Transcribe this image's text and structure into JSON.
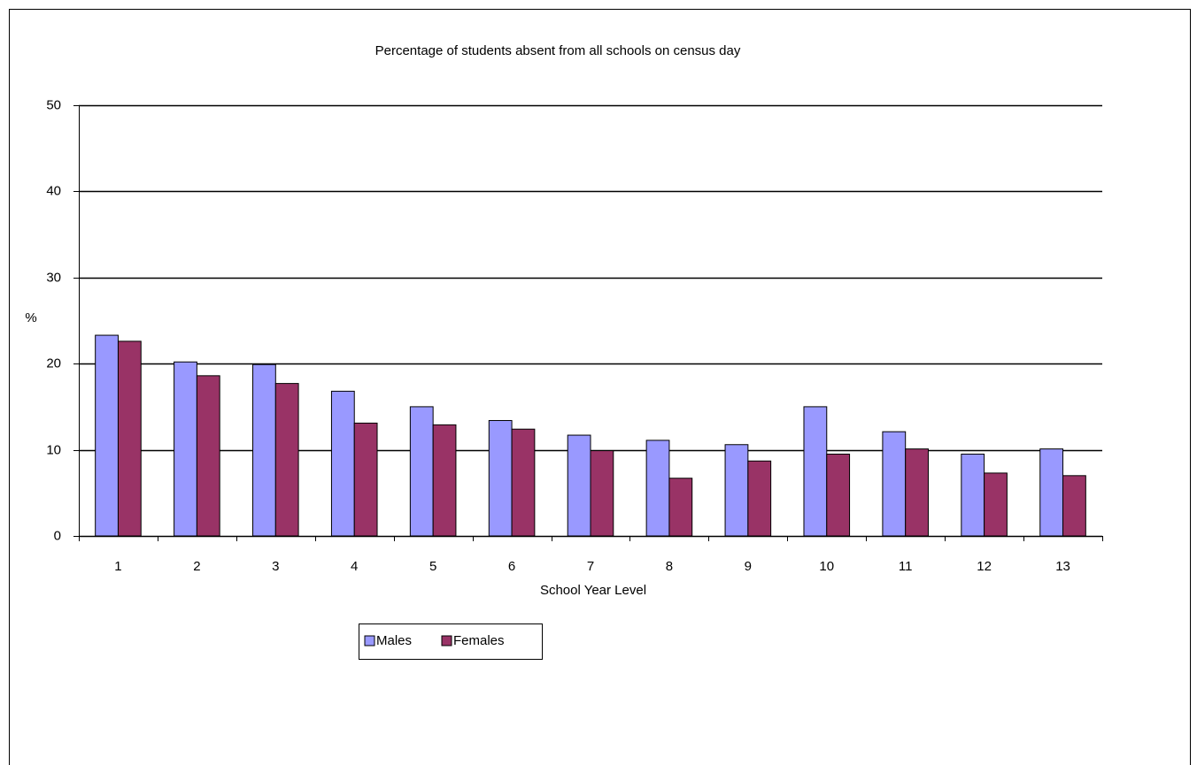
{
  "chart_data": {
    "type": "bar",
    "title": "Percentage of students absent from all schools on census day",
    "x_label": "School Year Level",
    "y_label": "%",
    "categories": [
      "1",
      "2",
      "3",
      "4",
      "5",
      "6",
      "7",
      "8",
      "9",
      "10",
      "11",
      "12",
      "13"
    ],
    "series": [
      {
        "name": "Males",
        "color": "#9999ff",
        "values": [
          23.3,
          20.2,
          19.9,
          16.8,
          15.0,
          13.4,
          11.7,
          11.1,
          10.6,
          15.0,
          12.1,
          9.5,
          10.1
        ]
      },
      {
        "name": "Females",
        "color": "#993366",
        "values": [
          22.6,
          18.6,
          17.7,
          13.1,
          12.9,
          12.4,
          9.9,
          6.7,
          8.7,
          9.5,
          10.1,
          7.3,
          7.0
        ]
      }
    ],
    "ylim": [
      0,
      50
    ],
    "yticks": [
      0,
      10,
      20,
      30,
      40,
      50
    ],
    "grid": true,
    "legend": "bottom"
  }
}
